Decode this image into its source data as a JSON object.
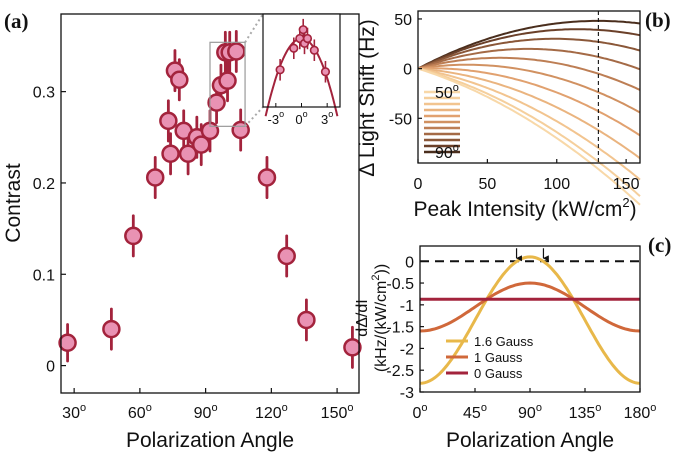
{
  "chart_data": [
    {
      "panel": "(a)",
      "type": "scatter",
      "xlabel": "Polarization Angle",
      "ylabel": "Contrast",
      "xlim": [
        24,
        160
      ],
      "ylim": [
        -0.03,
        0.385
      ],
      "xticks": [
        30,
        60,
        90,
        120,
        150
      ],
      "xtick_labels": [
        "30",
        "60",
        "90",
        "120",
        "150"
      ],
      "tick_suffix": "o",
      "yticks": [
        0,
        0.1,
        0.2,
        0.3
      ],
      "ytick_labels": [
        "0",
        "0.1",
        "0.2",
        "0.3"
      ],
      "grid": false,
      "marker_color": "#e992b3",
      "edge_color": "#a3233c",
      "points": [
        {
          "x": 27,
          "y": 0.025,
          "err": 0.02
        },
        {
          "x": 47,
          "y": 0.04,
          "err": 0.022
        },
        {
          "x": 57,
          "y": 0.142,
          "err": 0.022
        },
        {
          "x": 67,
          "y": 0.206,
          "err": 0.022
        },
        {
          "x": 73,
          "y": 0.268,
          "err": 0.022
        },
        {
          "x": 74,
          "y": 0.232,
          "err": 0.022
        },
        {
          "x": 76,
          "y": 0.323,
          "err": 0.022
        },
        {
          "x": 78,
          "y": 0.313,
          "err": 0.022
        },
        {
          "x": 80,
          "y": 0.257,
          "err": 0.022
        },
        {
          "x": 82,
          "y": 0.232,
          "err": 0.022
        },
        {
          "x": 86,
          "y": 0.25,
          "err": 0.022
        },
        {
          "x": 88,
          "y": 0.242,
          "err": 0.022
        },
        {
          "x": 92,
          "y": 0.257,
          "err": 0.022
        },
        {
          "x": 95,
          "y": 0.288,
          "err": 0.022
        },
        {
          "x": 97,
          "y": 0.307,
          "err": 0.022
        },
        {
          "x": 99,
          "y": 0.343,
          "err": 0.022
        },
        {
          "x": 100,
          "y": 0.312,
          "err": 0.022
        },
        {
          "x": 101,
          "y": 0.343,
          "err": 0.022
        },
        {
          "x": 104,
          "y": 0.344,
          "err": 0.022
        },
        {
          "x": 106,
          "y": 0.258,
          "err": 0.022
        },
        {
          "x": 118,
          "y": 0.206,
          "err": 0.022
        },
        {
          "x": 127,
          "y": 0.12,
          "err": 0.022
        },
        {
          "x": 136,
          "y": 0.05,
          "err": 0.022
        },
        {
          "x": 157,
          "y": 0.02,
          "err": 0.022
        }
      ],
      "inset": {
        "xlim": [
          -4.5,
          4.5
        ],
        "ylim": [
          0.26,
          0.355
        ],
        "xticks": [
          -3,
          0,
          3
        ],
        "xtick_labels": [
          "-3",
          "0",
          "3"
        ],
        "tick_suffix": "o",
        "points": [
          {
            "x": -2.5,
            "y": 0.298,
            "err": 0.011
          },
          {
            "x": -0.9,
            "y": 0.32,
            "err": 0.011
          },
          {
            "x": -0.2,
            "y": 0.33,
            "err": 0.011
          },
          {
            "x": 0.2,
            "y": 0.339,
            "err": 0.011
          },
          {
            "x": 0.35,
            "y": 0.325,
            "err": 0.011
          },
          {
            "x": 0.7,
            "y": 0.33,
            "err": 0.011
          },
          {
            "x": 1.5,
            "y": 0.318,
            "err": 0.011
          },
          {
            "x": 2.8,
            "y": 0.296,
            "err": 0.011
          }
        ],
        "fit": {
          "a": 0.33,
          "b": 0.0045
        }
      },
      "zoom_box": {
        "x": [
          92,
          108
        ],
        "y": [
          0.262,
          0.354
        ]
      }
    },
    {
      "panel": "(b)",
      "type": "line",
      "xlabel": "Peak Intensity (kW/cm",
      "xlabel_sup": "2",
      "xlabel_end": ")",
      "ylabel": "Δ Light Shift (Hz)",
      "xlim": [
        0,
        160
      ],
      "ylim": [
        -95,
        58
      ],
      "xticks": [
        0,
        50,
        100,
        150
      ],
      "xtick_labels": [
        "0",
        "50",
        "100",
        "150"
      ],
      "yticks": [
        -50,
        0,
        50
      ],
      "ytick_labels": [
        "-50",
        "0",
        "50"
      ],
      "grid": false,
      "vline_x": 130,
      "curve_model": "a*x + b*x^2",
      "series": [
        {
          "a": 0.74,
          "b": -0.00285,
          "color": "#4a2e1d"
        },
        {
          "a": 0.69,
          "b": -0.003,
          "color": "#6b4029"
        },
        {
          "a": 0.61,
          "b": -0.0031,
          "color": "#8a5738"
        },
        {
          "a": 0.5,
          "b": -0.00315,
          "color": "#a46a46"
        },
        {
          "a": 0.37,
          "b": -0.00315,
          "color": "#bd7e54"
        },
        {
          "a": 0.22,
          "b": -0.0031,
          "color": "#d19161"
        },
        {
          "a": 0.06,
          "b": -0.003,
          "color": "#e1a16f"
        },
        {
          "a": -0.1,
          "b": -0.0029,
          "color": "#eab47f"
        },
        {
          "a": -0.25,
          "b": -0.0028,
          "color": "#f2c48f"
        },
        {
          "a": -0.37,
          "b": -0.0027,
          "color": "#f5cf9c"
        },
        {
          "a": -0.44,
          "b": -0.0026,
          "color": "#f8d8a8"
        }
      ],
      "legend_top": "50",
      "legend_bottom": "90",
      "legend_suffix": "o"
    },
    {
      "panel": "(c)",
      "type": "line",
      "xlabel": "Polarization Angle",
      "ylabel_line1": "dΔ/dI",
      "ylabel_line2": "(kHz/(kW/cm",
      "ylabel_sup": "2",
      "ylabel_end": "))",
      "xlim": [
        0,
        180
      ],
      "ylim": [
        -3,
        0.35
      ],
      "xticks": [
        0,
        45,
        90,
        135,
        180
      ],
      "xtick_labels": [
        "0",
        "45",
        "90",
        "135",
        "180"
      ],
      "tick_suffix": "o",
      "yticks": [
        -3,
        -2.5,
        -2,
        -1.5,
        -1,
        -0.5,
        0
      ],
      "ytick_labels": [
        "-3",
        "-2.5",
        "-2",
        "-1.5",
        "-1",
        "-0.5",
        "0"
      ],
      "grid": false,
      "zero_line": true,
      "arrows_x": [
        79,
        101
      ],
      "series": [
        {
          "name": "1.6 Gauss",
          "color": "#e8b84a",
          "amp": 2.9,
          "offset": 0.1
        },
        {
          "name": "1 Gauss",
          "color": "#d0683a",
          "amp": 1.1,
          "offset": -0.5
        },
        {
          "name": "0 Gauss",
          "color": "#a3233c",
          "amp": 0.0,
          "offset": -0.87
        }
      ]
    }
  ]
}
